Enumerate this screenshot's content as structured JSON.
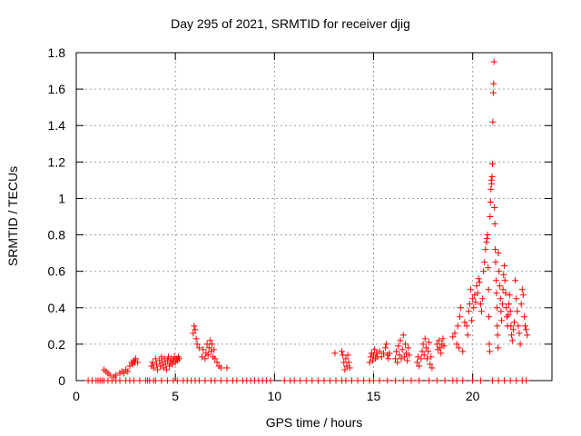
{
  "chart_data": {
    "type": "scatter",
    "title": "Day 295 of 2021, SRMTID for receiver djig",
    "xlabel": "GPS time / hours",
    "ylabel": "SRMTID / TECUs",
    "xlim": [
      0,
      24
    ],
    "ylim": [
      0,
      1.8
    ],
    "xticks": [
      0,
      5,
      10,
      15,
      20
    ],
    "yticks": [
      0,
      0.2,
      0.4,
      0.6,
      0.8,
      1,
      1.2,
      1.4,
      1.6,
      1.8
    ],
    "xtick_labels": [
      "0",
      "5",
      "10",
      "15",
      "20"
    ],
    "ytick_labels": [
      "0",
      "0.2",
      "0.4",
      "0.6",
      "0.8",
      "1",
      "1.2",
      "1.4",
      "1.6",
      "1.8"
    ],
    "grid": true,
    "marker": "+",
    "color": "#ff0000",
    "series": [
      {
        "name": "SRMTID",
        "points": [
          [
            0.6,
            0
          ],
          [
            0.8,
            0
          ],
          [
            1.0,
            0
          ],
          [
            1.1,
            0
          ],
          [
            1.2,
            0
          ],
          [
            1.3,
            0
          ],
          [
            1.4,
            0
          ],
          [
            1.6,
            0
          ],
          [
            1.8,
            0
          ],
          [
            2.0,
            0
          ],
          [
            2.2,
            0
          ],
          [
            2.5,
            0
          ],
          [
            2.7,
            0
          ],
          [
            2.9,
            0
          ],
          [
            3.2,
            0
          ],
          [
            3.5,
            0
          ],
          [
            3.6,
            0
          ],
          [
            3.7,
            0
          ],
          [
            3.9,
            0
          ],
          [
            4.0,
            0
          ],
          [
            4.3,
            0
          ],
          [
            4.6,
            0
          ],
          [
            4.9,
            0
          ],
          [
            5.1,
            0
          ],
          [
            5.4,
            0
          ],
          [
            5.6,
            0
          ],
          [
            5.8,
            0
          ],
          [
            6.0,
            0
          ],
          [
            6.2,
            0
          ],
          [
            6.5,
            0
          ],
          [
            6.8,
            0
          ],
          [
            7.0,
            0
          ],
          [
            7.3,
            0
          ],
          [
            7.6,
            0
          ],
          [
            7.9,
            0
          ],
          [
            8.1,
            0
          ],
          [
            8.4,
            0
          ],
          [
            8.6,
            0
          ],
          [
            8.8,
            0
          ],
          [
            9.0,
            0
          ],
          [
            9.2,
            0
          ],
          [
            9.4,
            0
          ],
          [
            9.6,
            0
          ],
          [
            9.8,
            0
          ],
          [
            10.5,
            0
          ],
          [
            10.8,
            0
          ],
          [
            11.0,
            0
          ],
          [
            11.3,
            0
          ],
          [
            11.6,
            0
          ],
          [
            11.9,
            0
          ],
          [
            12.2,
            0
          ],
          [
            12.5,
            0
          ],
          [
            12.8,
            0
          ],
          [
            13.1,
            0
          ],
          [
            13.4,
            0
          ],
          [
            13.6,
            0
          ],
          [
            13.9,
            0
          ],
          [
            14.2,
            0
          ],
          [
            14.5,
            0
          ],
          [
            14.8,
            0
          ],
          [
            15.0,
            0
          ],
          [
            15.3,
            0
          ],
          [
            15.7,
            0
          ],
          [
            16.1,
            0
          ],
          [
            16.5,
            0
          ],
          [
            16.9,
            0
          ],
          [
            17.3,
            0
          ],
          [
            17.8,
            0
          ],
          [
            18.2,
            0
          ],
          [
            18.6,
            0
          ],
          [
            19.0,
            0
          ],
          [
            19.2,
            0
          ],
          [
            19.5,
            0
          ],
          [
            20.0,
            0
          ],
          [
            20.4,
            0
          ],
          [
            21.0,
            0
          ],
          [
            21.3,
            0
          ],
          [
            21.6,
            0
          ],
          [
            21.9,
            0
          ],
          [
            22.2,
            0
          ],
          [
            22.5,
            0
          ],
          [
            22.7,
            0
          ],
          [
            1.4,
            0.06
          ],
          [
            1.5,
            0.05
          ],
          [
            1.6,
            0.04
          ],
          [
            1.7,
            0.03
          ],
          [
            1.9,
            0.02
          ],
          [
            2.0,
            0.03
          ],
          [
            2.2,
            0.04
          ],
          [
            2.3,
            0.05
          ],
          [
            2.4,
            0.04
          ],
          [
            2.5,
            0.06
          ],
          [
            2.6,
            0.05
          ],
          [
            2.7,
            0.08
          ],
          [
            2.8,
            0.1
          ],
          [
            2.85,
            0.09
          ],
          [
            2.9,
            0.11
          ],
          [
            2.95,
            0.1
          ],
          [
            3.0,
            0.12
          ],
          [
            3.1,
            0.1
          ],
          [
            3.8,
            0.08
          ],
          [
            3.85,
            0.1
          ],
          [
            3.9,
            0.07
          ],
          [
            4.0,
            0.12
          ],
          [
            4.05,
            0.09
          ],
          [
            4.1,
            0.06
          ],
          [
            4.2,
            0.11
          ],
          [
            4.25,
            0.08
          ],
          [
            4.3,
            0.13
          ],
          [
            4.35,
            0.1
          ],
          [
            4.4,
            0.07
          ],
          [
            4.45,
            0.12
          ],
          [
            4.5,
            0.09
          ],
          [
            4.55,
            0.06
          ],
          [
            4.6,
            0.11
          ],
          [
            4.65,
            0.13
          ],
          [
            4.7,
            0.08
          ],
          [
            4.75,
            0.1
          ],
          [
            4.8,
            0.12
          ],
          [
            4.85,
            0.09
          ],
          [
            4.9,
            0.11
          ],
          [
            4.95,
            0.13
          ],
          [
            5.0,
            0.1
          ],
          [
            5.05,
            0.12
          ],
          [
            5.1,
            0.11
          ],
          [
            5.15,
            0.13
          ],
          [
            5.2,
            0.12
          ],
          [
            5.9,
            0.26
          ],
          [
            5.95,
            0.3
          ],
          [
            6.0,
            0.28
          ],
          [
            6.05,
            0.23
          ],
          [
            6.1,
            0.2
          ],
          [
            6.2,
            0.18
          ],
          [
            6.35,
            0.13
          ],
          [
            6.4,
            0.17
          ],
          [
            6.5,
            0.12
          ],
          [
            6.55,
            0.15
          ],
          [
            6.6,
            0.2
          ],
          [
            6.65,
            0.14
          ],
          [
            6.7,
            0.18
          ],
          [
            6.75,
            0.22
          ],
          [
            6.8,
            0.16
          ],
          [
            6.85,
            0.2
          ],
          [
            6.9,
            0.13
          ],
          [
            6.95,
            0.17
          ],
          [
            7.0,
            0.12
          ],
          [
            7.1,
            0.1
          ],
          [
            7.2,
            0.08
          ],
          [
            7.3,
            0.07
          ],
          [
            7.6,
            0.07
          ],
          [
            13.05,
            0.15
          ],
          [
            13.4,
            0.16
          ],
          [
            13.45,
            0.14
          ],
          [
            13.5,
            0.1
          ],
          [
            13.55,
            0.06
          ],
          [
            13.6,
            0.12
          ],
          [
            13.65,
            0.08
          ],
          [
            13.7,
            0.14
          ],
          [
            13.75,
            0.1
          ],
          [
            13.8,
            0.07
          ],
          [
            14.8,
            0.1
          ],
          [
            14.85,
            0.13
          ],
          [
            14.9,
            0.15
          ],
          [
            14.95,
            0.11
          ],
          [
            15.0,
            0.14
          ],
          [
            15.05,
            0.17
          ],
          [
            15.1,
            0.12
          ],
          [
            15.15,
            0.15
          ],
          [
            15.2,
            0.13
          ],
          [
            15.3,
            0.16
          ],
          [
            15.4,
            0.13
          ],
          [
            15.5,
            0.15
          ],
          [
            15.6,
            0.18
          ],
          [
            15.65,
            0.2
          ],
          [
            15.7,
            0.14
          ],
          [
            15.75,
            0.12
          ],
          [
            15.8,
            0.15
          ],
          [
            16.1,
            0.12
          ],
          [
            16.15,
            0.16
          ],
          [
            16.2,
            0.1
          ],
          [
            16.25,
            0.19
          ],
          [
            16.3,
            0.14
          ],
          [
            16.35,
            0.22
          ],
          [
            16.4,
            0.12
          ],
          [
            16.45,
            0.17
          ],
          [
            16.5,
            0.25
          ],
          [
            16.55,
            0.13
          ],
          [
            16.6,
            0.2
          ],
          [
            16.65,
            0.15
          ],
          [
            16.7,
            0.11
          ],
          [
            16.75,
            0.18
          ],
          [
            16.8,
            0.14
          ],
          [
            17.2,
            0.1
          ],
          [
            17.25,
            0.13
          ],
          [
            17.3,
            0.08
          ],
          [
            17.4,
            0.12
          ],
          [
            17.45,
            0.16
          ],
          [
            17.5,
            0.2
          ],
          [
            17.55,
            0.14
          ],
          [
            17.6,
            0.23
          ],
          [
            17.65,
            0.18
          ],
          [
            17.7,
            0.12
          ],
          [
            17.75,
            0.16
          ],
          [
            17.8,
            0.21
          ],
          [
            17.85,
            0.09
          ],
          [
            17.9,
            0.13
          ],
          [
            17.95,
            0.07
          ],
          [
            18.2,
            0.2
          ],
          [
            18.25,
            0.17
          ],
          [
            18.3,
            0.22
          ],
          [
            18.35,
            0.18
          ],
          [
            18.4,
            0.15
          ],
          [
            18.45,
            0.2
          ],
          [
            18.5,
            0.23
          ],
          [
            18.55,
            0.19
          ],
          [
            19.0,
            0.24
          ],
          [
            19.1,
            0.26
          ],
          [
            19.2,
            0.2
          ],
          [
            19.25,
            0.3
          ],
          [
            19.3,
            0.18
          ],
          [
            19.35,
            0.35
          ],
          [
            19.4,
            0.4
          ],
          [
            19.5,
            0.16
          ],
          [
            19.6,
            0.32
          ],
          [
            19.7,
            0.3
          ],
          [
            19.75,
            0.25
          ],
          [
            19.8,
            0.38
          ],
          [
            19.85,
            0.42
          ],
          [
            19.9,
            0.5
          ],
          [
            19.95,
            0.33
          ],
          [
            20.0,
            0.45
          ],
          [
            20.05,
            0.4
          ],
          [
            20.1,
            0.47
          ],
          [
            20.15,
            0.43
          ],
          [
            20.2,
            0.52
          ],
          [
            20.25,
            0.48
          ],
          [
            20.3,
            0.56
          ],
          [
            20.35,
            0.54
          ],
          [
            20.4,
            0.42
          ],
          [
            20.45,
            0.38
          ],
          [
            20.5,
            0.45
          ],
          [
            20.55,
            0.6
          ],
          [
            20.6,
            0.65
          ],
          [
            20.65,
            0.72
          ],
          [
            20.7,
            0.76
          ],
          [
            20.72,
            0.78
          ],
          [
            20.75,
            0.8
          ],
          [
            20.78,
            0.62
          ],
          [
            20.8,
            0.5
          ],
          [
            20.82,
            0.35
          ],
          [
            20.84,
            0.2
          ],
          [
            20.86,
            0.16
          ],
          [
            20.88,
            0.9
          ],
          [
            20.9,
            0.98
          ],
          [
            20.92,
            1.05
          ],
          [
            20.94,
            1.1
          ],
          [
            20.96,
            1.08
          ],
          [
            20.98,
            1.12
          ],
          [
            21.0,
            1.19
          ],
          [
            21.02,
            1.42
          ],
          [
            21.04,
            1.58
          ],
          [
            21.06,
            1.63
          ],
          [
            21.08,
            1.75
          ],
          [
            21.1,
            0.95
          ],
          [
            21.12,
            0.86
          ],
          [
            21.14,
            0.72
          ],
          [
            21.16,
            0.65
          ],
          [
            21.18,
            0.55
          ],
          [
            21.2,
            0.48
          ],
          [
            21.22,
            0.4
          ],
          [
            21.24,
            0.3
          ],
          [
            21.26,
            0.25
          ],
          [
            21.28,
            0.18
          ],
          [
            21.3,
            0.7
          ],
          [
            21.33,
            0.6
          ],
          [
            21.36,
            0.52
          ],
          [
            21.4,
            0.45
          ],
          [
            21.43,
            0.38
          ],
          [
            21.46,
            0.33
          ],
          [
            21.5,
            0.42
          ],
          [
            21.53,
            0.5
          ],
          [
            21.56,
            0.58
          ],
          [
            21.6,
            0.63
          ],
          [
            21.63,
            0.55
          ],
          [
            21.66,
            0.48
          ],
          [
            21.7,
            0.4
          ],
          [
            21.73,
            0.35
          ],
          [
            21.76,
            0.3
          ],
          [
            21.8,
            0.36
          ],
          [
            21.83,
            0.42
          ],
          [
            21.86,
            0.47
          ],
          [
            21.9,
            0.38
          ],
          [
            21.93,
            0.3
          ],
          [
            21.96,
            0.25
          ],
          [
            22.0,
            0.22
          ],
          [
            22.05,
            0.28
          ],
          [
            22.1,
            0.32
          ],
          [
            22.15,
            0.55
          ],
          [
            22.2,
            0.45
          ],
          [
            22.25,
            0.38
          ],
          [
            22.3,
            0.3
          ],
          [
            22.35,
            0.26
          ],
          [
            22.4,
            0.2
          ],
          [
            22.45,
            0.42
          ],
          [
            22.5,
            0.5
          ],
          [
            22.55,
            0.47
          ],
          [
            22.6,
            0.35
          ],
          [
            22.65,
            0.3
          ],
          [
            22.7,
            0.28
          ],
          [
            22.75,
            0.25
          ]
        ]
      }
    ]
  }
}
